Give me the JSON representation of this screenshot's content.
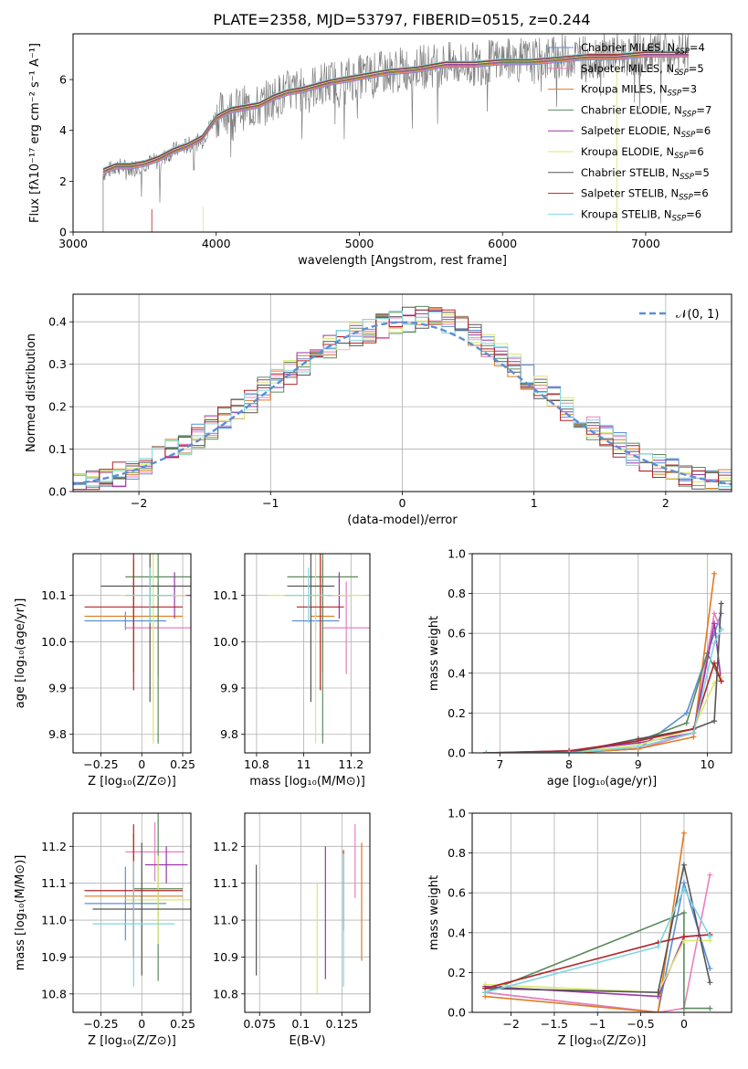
{
  "title": "PLATE=2358, MJD=53797, FIBERID=0515, z=0.244",
  "series": [
    {
      "name": "Chabrier MILES",
      "nssp": "4",
      "color": "#5b8fd6"
    },
    {
      "name": "Salpeter MILES",
      "nssp": "5",
      "color": "#e87fbf"
    },
    {
      "name": "Kroupa MILES",
      "nssp": "3",
      "color": "#e07b22"
    },
    {
      "name": "Chabrier ELODIE",
      "nssp": "7",
      "color": "#5c8a5c"
    },
    {
      "name": "Salpeter ELODIE",
      "nssp": "6",
      "color": "#9a35a8"
    },
    {
      "name": "Kroupa ELODIE",
      "nssp": "6",
      "color": "#d9e86e"
    },
    {
      "name": "Chabrier STELIB",
      "nssp": "5",
      "color": "#555555"
    },
    {
      "name": "Salpeter STELIB",
      "nssp": "6",
      "color": "#b3242a"
    },
    {
      "name": "Kroupa STELIB",
      "nssp": "6",
      "color": "#7fd6e0"
    }
  ],
  "chart_data": [
    {
      "id": "spectrum",
      "type": "line",
      "xlabel": "wavelength [Angstrom, rest frame]",
      "ylabel": "Flux [fλ10⁻¹⁷ erg cm⁻² s⁻¹ A⁻¹]",
      "xlim": [
        3000,
        7600
      ],
      "ylim": [
        0,
        7.8
      ],
      "xticks": [
        3000,
        4000,
        5000,
        6000,
        7000
      ],
      "yticks": [
        0,
        2,
        4,
        6
      ],
      "data_color": "#808080",
      "data_series": {
        "name": "data",
        "x": [
          3210,
          3300,
          3400,
          3500,
          3600,
          3700,
          3800,
          3900,
          4000,
          4100,
          4200,
          4300,
          4400,
          4500,
          4600,
          4800,
          5000,
          5200,
          5400,
          5600,
          5800,
          6000,
          6200,
          6400,
          6600,
          6800,
          7000,
          7200,
          7300
        ],
        "y": [
          2.3,
          2.6,
          2.5,
          2.7,
          2.8,
          3.2,
          3.4,
          3.6,
          4.6,
          4.8,
          4.9,
          4.9,
          5.3,
          5.5,
          5.6,
          5.9,
          6.1,
          6.3,
          6.5,
          6.6,
          6.6,
          6.8,
          6.7,
          6.9,
          6.9,
          7.0,
          7.0,
          7.0,
          7.0
        ]
      },
      "model_x": [
        3210,
        3300,
        3400,
        3500,
        3600,
        3700,
        3800,
        3900,
        4000,
        4100,
        4200,
        4300,
        4400,
        4500,
        4600,
        4800,
        5000,
        5200,
        5400,
        5600,
        5800,
        6000,
        6200,
        6400,
        6600,
        6800,
        7000,
        7200,
        7300
      ],
      "model_y": [
        2.4,
        2.6,
        2.6,
        2.7,
        2.9,
        3.2,
        3.4,
        3.7,
        4.5,
        4.8,
        4.9,
        5.0,
        5.3,
        5.5,
        5.6,
        5.9,
        6.1,
        6.3,
        6.4,
        6.6,
        6.6,
        6.7,
        6.7,
        6.8,
        6.9,
        6.9,
        7.0,
        7.0,
        7.0
      ]
    },
    {
      "id": "residuals",
      "type": "line",
      "xlabel": "(data-model)/error",
      "ylabel": "Normed distribution",
      "xlim": [
        -2.5,
        2.5
      ],
      "ylim": [
        0,
        0.465
      ],
      "xticks": [
        -2,
        -1,
        0,
        1,
        2
      ],
      "yticks": [
        0.0,
        0.1,
        0.2,
        0.3,
        0.4
      ],
      "legend": "𝒩(0, 1)",
      "hist_x": [
        -2.5,
        -2.3,
        -2.1,
        -1.9,
        -1.7,
        -1.5,
        -1.3,
        -1.1,
        -0.9,
        -0.7,
        -0.5,
        -0.3,
        -0.1,
        0.1,
        0.3,
        0.5,
        0.7,
        0.9,
        1.1,
        1.3,
        1.5,
        1.7,
        1.9,
        2.1,
        2.3,
        2.5
      ],
      "hist_y": [
        0.02,
        0.03,
        0.05,
        0.09,
        0.11,
        0.15,
        0.19,
        0.24,
        0.28,
        0.32,
        0.36,
        0.38,
        0.4,
        0.41,
        0.4,
        0.37,
        0.32,
        0.27,
        0.22,
        0.17,
        0.13,
        0.09,
        0.06,
        0.04,
        0.03,
        0.02
      ]
    },
    {
      "id": "age-vs-z",
      "type": "scatter",
      "xlabel": "Z [log₁₀(Z/Z⊙)]",
      "ylabel": "age  [log₁₀(age/yr)]",
      "xlim": [
        -0.42,
        0.3
      ],
      "ylim": [
        9.76,
        10.19
      ],
      "xticks": [
        -0.25,
        0.0,
        0.25
      ],
      "yticks": [
        9.8,
        9.9,
        10.0,
        10.1
      ],
      "points": [
        {
          "s": 0,
          "x": -0.1,
          "y": 10.045,
          "ex": 0.25,
          "ey": 0.02
        },
        {
          "s": 1,
          "x": 0.1,
          "y": 10.03,
          "ex": 0.2,
          "ey": 0.1
        },
        {
          "s": 2,
          "x": -0.05,
          "y": 10.055,
          "ex": 0.3,
          "ey": 0.12
        },
        {
          "s": 3,
          "x": 0.1,
          "y": 10.14,
          "ex": 0.2,
          "ey": 0.36
        },
        {
          "s": 4,
          "x": 0.2,
          "y": 10.1,
          "ex": 0.1,
          "ey": 0.05
        },
        {
          "s": 5,
          "x": 0.07,
          "y": 10.1,
          "ex": 0.2,
          "ey": 0.32
        },
        {
          "s": 6,
          "x": 0.05,
          "y": 10.12,
          "ex": 0.3,
          "ey": 0.25
        },
        {
          "s": 7,
          "x": -0.05,
          "y": 10.075,
          "ex": 0.3,
          "ey": 0.18
        },
        {
          "s": 8,
          "x": 0.05,
          "y": 10.1,
          "ex": 0.15,
          "ey": 0.06
        }
      ]
    },
    {
      "id": "age-vs-mass",
      "type": "scatter",
      "xlabel": "mass [log₁₀(M/M⊙)]",
      "ylabel": "",
      "xlim": [
        10.75,
        11.28
      ],
      "ylim": [
        9.76,
        10.19
      ],
      "xticks": [
        10.8,
        11.0,
        11.2
      ],
      "yticks": [
        9.8,
        9.9,
        10.0,
        10.1
      ],
      "points": [
        {
          "s": 0,
          "x": 11.05,
          "y": 10.045,
          "ex": 0.1,
          "ey": 0.02
        },
        {
          "s": 1,
          "x": 11.18,
          "y": 10.03,
          "ex": 0.1,
          "ey": 0.1
        },
        {
          "s": 2,
          "x": 11.08,
          "y": 10.055,
          "ex": 0.05,
          "ey": 0.12
        },
        {
          "s": 3,
          "x": 11.08,
          "y": 10.14,
          "ex": 0.15,
          "ey": 0.36
        },
        {
          "s": 4,
          "x": 11.15,
          "y": 10.1,
          "ex": 0.05,
          "ey": 0.05
        },
        {
          "s": 5,
          "x": 11.05,
          "y": 10.1,
          "ex": 0.2,
          "ey": 0.32
        },
        {
          "s": 6,
          "x": 11.03,
          "y": 10.12,
          "ex": 0.1,
          "ey": 0.25
        },
        {
          "s": 7,
          "x": 11.07,
          "y": 10.075,
          "ex": 0.1,
          "ey": 0.18
        },
        {
          "s": 8,
          "x": 11.02,
          "y": 10.1,
          "ex": 0.1,
          "ey": 0.06
        }
      ]
    },
    {
      "id": "weight-vs-age",
      "type": "line",
      "xlabel": "age  [log₁₀(age/yr)]",
      "ylabel": "mass weight",
      "xlim": [
        6.6,
        10.35
      ],
      "ylim": [
        0,
        1.0
      ],
      "xticks": [
        7,
        8,
        9,
        10
      ],
      "yticks": [
        0.0,
        0.2,
        0.4,
        0.6,
        0.8,
        1.0
      ],
      "lines": [
        {
          "s": 0,
          "x": [
            6.8,
            8.0,
            9.0,
            9.7,
            10.1,
            10.2
          ],
          "y": [
            0.0,
            0.0,
            0.02,
            0.2,
            0.6,
            0.7
          ]
        },
        {
          "s": 1,
          "x": [
            6.8,
            8.0,
            9.0,
            9.8,
            10.1,
            10.2
          ],
          "y": [
            0.0,
            0.0,
            0.02,
            0.1,
            0.7,
            0.62
          ]
        },
        {
          "s": 2,
          "x": [
            6.8,
            8.0,
            9.0,
            9.8,
            10.1
          ],
          "y": [
            0.0,
            0.0,
            0.02,
            0.08,
            0.9
          ]
        },
        {
          "s": 3,
          "x": [
            6.8,
            8.0,
            9.0,
            9.7,
            10.0,
            10.2
          ],
          "y": [
            0.0,
            0.0,
            0.06,
            0.15,
            0.5,
            0.36
          ]
        },
        {
          "s": 4,
          "x": [
            6.8,
            8.0,
            9.0,
            9.8,
            10.1,
            10.2
          ],
          "y": [
            0.0,
            0.01,
            0.05,
            0.1,
            0.65,
            0.36
          ]
        },
        {
          "s": 5,
          "x": [
            6.8,
            8.0,
            9.0,
            9.8,
            10.1,
            10.2
          ],
          "y": [
            0.0,
            0.0,
            0.04,
            0.12,
            0.35,
            0.38
          ]
        },
        {
          "s": 6,
          "x": [
            6.8,
            8.0,
            9.0,
            9.8,
            10.1,
            10.2
          ],
          "y": [
            0.0,
            0.0,
            0.07,
            0.12,
            0.16,
            0.75
          ]
        },
        {
          "s": 7,
          "x": [
            6.8,
            8.0,
            9.0,
            9.8,
            10.1,
            10.2
          ],
          "y": [
            0.0,
            0.01,
            0.06,
            0.12,
            0.45,
            0.36
          ]
        },
        {
          "s": 8,
          "x": [
            6.8,
            8.0,
            9.0,
            9.8,
            10.1,
            10.2
          ],
          "y": [
            0.0,
            0.0,
            0.03,
            0.1,
            0.55,
            0.62
          ]
        }
      ]
    },
    {
      "id": "mass-vs-z",
      "type": "scatter",
      "xlabel": "Z [log₁₀(Z/Z⊙)]",
      "ylabel": "mass [log₁₀(M/M⊙)]",
      "xlim": [
        -0.42,
        0.3
      ],
      "ylim": [
        10.75,
        11.29
      ],
      "xticks": [
        -0.25,
        0.0,
        0.25
      ],
      "yticks": [
        10.8,
        10.9,
        11.0,
        11.1,
        11.2
      ],
      "points": [
        {
          "s": 0,
          "x": -0.1,
          "y": 11.045,
          "ex": 0.25,
          "ey": 0.1
        },
        {
          "s": 1,
          "x": 0.08,
          "y": 11.185,
          "ex": 0.18,
          "ey": 0.08
        },
        {
          "s": 2,
          "x": -0.05,
          "y": 11.065,
          "ex": 0.3,
          "ey": 0.17
        },
        {
          "s": 3,
          "x": 0.1,
          "y": 11.085,
          "ex": 0.15,
          "ey": 0.25
        },
        {
          "s": 4,
          "x": 0.15,
          "y": 11.15,
          "ex": 0.13,
          "ey": 0.05
        },
        {
          "s": 5,
          "x": 0.1,
          "y": 11.055,
          "ex": 0.2,
          "ey": 0.12
        },
        {
          "s": 6,
          "x": 0.0,
          "y": 11.03,
          "ex": 0.3,
          "ey": 0.18
        },
        {
          "s": 7,
          "x": -0.05,
          "y": 11.08,
          "ex": 0.3,
          "ey": 0.18
        },
        {
          "s": 8,
          "x": -0.05,
          "y": 10.99,
          "ex": 0.25,
          "ey": 0.17
        }
      ]
    },
    {
      "id": "mass-vs-ebv",
      "type": "scatter",
      "xlabel": "E(B-V)",
      "ylabel": "",
      "xlim": [
        0.066,
        0.142
      ],
      "ylim": [
        10.75,
        11.29
      ],
      "xticks": [
        0.075,
        0.1,
        0.125
      ],
      "yticks": [
        10.8,
        10.9,
        11.0,
        11.1,
        11.2
      ],
      "points": [
        {
          "s": 6,
          "x": 0.073,
          "y": 11.0,
          "ex": 0,
          "ey": 0.15
        },
        {
          "s": 5,
          "x": 0.11,
          "y": 10.95,
          "ex": 0,
          "ey": 0.15
        },
        {
          "s": 4,
          "x": 0.115,
          "y": 11.02,
          "ex": 0,
          "ey": 0.18
        },
        {
          "s": 7,
          "x": 0.126,
          "y": 11.08,
          "ex": 0,
          "ey": 0.11
        },
        {
          "s": 8,
          "x": 0.126,
          "y": 11.0,
          "ex": 0,
          "ey": 0.18
        },
        {
          "s": 1,
          "x": 0.133,
          "y": 11.16,
          "ex": 0,
          "ey": 0.1
        },
        {
          "s": 2,
          "x": 0.137,
          "y": 11.05,
          "ex": 0,
          "ey": 0.16
        }
      ]
    },
    {
      "id": "weight-vs-z",
      "type": "line",
      "xlabel": "Z [log₁₀(Z/Z⊙)]",
      "ylabel": "mass weight",
      "xlim": [
        -2.45,
        0.55
      ],
      "ylim": [
        0,
        1.0
      ],
      "xticks": [
        -2.0,
        -1.5,
        -1.0,
        -0.5,
        0.0
      ],
      "yticks": [
        0.0,
        0.2,
        0.4,
        0.6,
        0.8,
        1.0
      ],
      "lines": [
        {
          "s": 0,
          "x": [
            -2.3,
            -0.3,
            0.0,
            0.3
          ],
          "y": [
            0.1,
            0.0,
            0.65,
            0.22
          ]
        },
        {
          "s": 1,
          "x": [
            -2.3,
            -0.3,
            0.0,
            0.3
          ],
          "y": [
            0.1,
            0.0,
            0.02,
            0.69
          ]
        },
        {
          "s": 2,
          "x": [
            -2.3,
            -0.3,
            0.0
          ],
          "y": [
            0.08,
            0.0,
            0.9
          ]
        },
        {
          "s": 3,
          "x": [
            -2.3,
            0.0,
            0.0,
            0.3
          ],
          "y": [
            0.1,
            0.5,
            0.02,
            0.02
          ]
        },
        {
          "s": 4,
          "x": [
            -2.3,
            -0.3,
            0.0,
            0.3
          ],
          "y": [
            0.13,
            0.08,
            0.38,
            0.39
          ]
        },
        {
          "s": 5,
          "x": [
            -2.3,
            -0.3,
            0.0,
            0.3
          ],
          "y": [
            0.14,
            0.1,
            0.36,
            0.36
          ]
        },
        {
          "s": 6,
          "x": [
            -2.3,
            -0.3,
            0.0,
            0.3
          ],
          "y": [
            0.12,
            0.1,
            0.74,
            0.15
          ]
        },
        {
          "s": 7,
          "x": [
            -2.3,
            -0.3,
            0.0,
            0.3
          ],
          "y": [
            0.12,
            0.35,
            0.38,
            0.39
          ]
        },
        {
          "s": 8,
          "x": [
            -2.3,
            -0.3,
            0.0,
            0.3
          ],
          "y": [
            0.1,
            0.33,
            0.62,
            0.38
          ]
        }
      ]
    }
  ]
}
